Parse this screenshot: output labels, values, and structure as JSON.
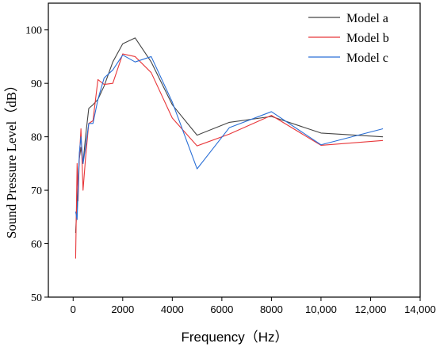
{
  "chart_data": {
    "type": "line",
    "title": "",
    "xlabel": "Frequency（Hz）",
    "ylabel": "Sound Pressure Level（dB）",
    "xlim": [
      -1000,
      14000
    ],
    "ylim": [
      50,
      105
    ],
    "xticks": [
      0,
      2000,
      4000,
      6000,
      8000,
      10000,
      12000,
      14000
    ],
    "xtick_labels": [
      "0",
      "2000",
      "4000",
      "6000",
      "8000",
      "10,000",
      "12,000",
      "14,000"
    ],
    "yticks": [
      50,
      60,
      70,
      80,
      90,
      100
    ],
    "ytick_labels": [
      "50",
      "60",
      "70",
      "80",
      "90",
      "100"
    ],
    "grid": false,
    "legend_position": "top-right",
    "series": [
      {
        "name": "Model a",
        "color": "#444444",
        "points": [
          [
            100,
            62
          ],
          [
            160,
            68
          ],
          [
            200,
            72
          ],
          [
            250,
            76
          ],
          [
            315,
            78
          ],
          [
            400,
            75
          ],
          [
            500,
            80
          ],
          [
            630,
            85.3
          ],
          [
            800,
            86
          ],
          [
            1000,
            87
          ],
          [
            1250,
            89.5
          ],
          [
            1600,
            94
          ],
          [
            2000,
            97.4
          ],
          [
            2500,
            98.5
          ],
          [
            3150,
            94
          ],
          [
            4000,
            86
          ],
          [
            5000,
            80.3
          ],
          [
            6300,
            82.7
          ],
          [
            8000,
            83.8
          ],
          [
            10000,
            80.7
          ],
          [
            12500,
            80
          ]
        ]
      },
      {
        "name": "Model b",
        "color": "#e8373a",
        "points": [
          [
            100,
            57.2
          ],
          [
            160,
            75
          ],
          [
            200,
            68
          ],
          [
            250,
            76
          ],
          [
            315,
            81.5
          ],
          [
            400,
            70
          ],
          [
            500,
            76
          ],
          [
            630,
            82.5
          ],
          [
            800,
            83
          ],
          [
            1000,
            90.7
          ],
          [
            1250,
            89.8
          ],
          [
            1600,
            90
          ],
          [
            2000,
            95.5
          ],
          [
            2500,
            95
          ],
          [
            3150,
            92
          ],
          [
            4000,
            83.5
          ],
          [
            5000,
            78.3
          ],
          [
            6300,
            80.5
          ],
          [
            8000,
            84
          ],
          [
            10000,
            78.4
          ],
          [
            12500,
            79.3
          ]
        ]
      },
      {
        "name": "Model c",
        "color": "#2a6fd6",
        "points": [
          [
            100,
            66
          ],
          [
            160,
            64.5
          ],
          [
            200,
            70
          ],
          [
            250,
            77
          ],
          [
            315,
            80
          ],
          [
            400,
            75
          ],
          [
            500,
            78
          ],
          [
            630,
            82.5
          ],
          [
            800,
            82.5
          ],
          [
            1000,
            87
          ],
          [
            1250,
            91
          ],
          [
            1600,
            92.5
          ],
          [
            2000,
            95.3
          ],
          [
            2500,
            94
          ],
          [
            3150,
            95
          ],
          [
            4000,
            86.5
          ],
          [
            5000,
            74
          ],
          [
            6300,
            81.7
          ],
          [
            8000,
            84.7
          ],
          [
            10000,
            78.5
          ],
          [
            12500,
            81.5
          ]
        ]
      }
    ]
  }
}
